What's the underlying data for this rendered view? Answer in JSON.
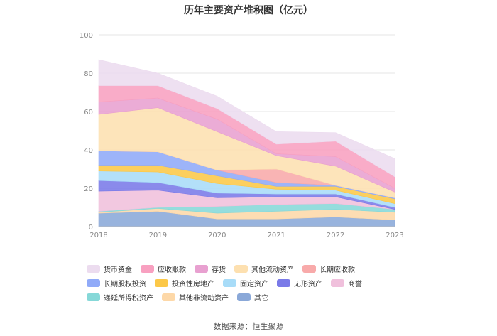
{
  "chart_data": {
    "type": "area",
    "stacked": true,
    "title": "历年主要资产堆积图（亿元）",
    "x": [
      "2018",
      "2019",
      "2020",
      "2021",
      "2022",
      "2023"
    ],
    "ylim": [
      0,
      100
    ],
    "yticks": [
      "0",
      "20",
      "40",
      "60",
      "80",
      "100"
    ],
    "series": [
      {
        "name": "其它",
        "color": "#8aa8d8",
        "values": [
          7.0,
          8.0,
          4.0,
          4.0,
          5.0,
          3.5
        ]
      },
      {
        "name": "其他非流动资产",
        "color": "#fdd8a8",
        "values": [
          0.5,
          1.5,
          3.0,
          4.0,
          4.0,
          4.0
        ]
      },
      {
        "name": "递延所得税资产",
        "color": "#86d8d8",
        "values": [
          0.5,
          0.5,
          3.5,
          3.5,
          3.0,
          1.5
        ]
      },
      {
        "name": "商誉",
        "color": "#f0c0dc",
        "values": [
          10.5,
          9.0,
          4.5,
          4.0,
          3.5,
          0.0
        ]
      },
      {
        "name": "无形资产",
        "color": "#7a7ae8",
        "values": [
          5.5,
          4.0,
          2.5,
          1.5,
          1.5,
          1.0
        ]
      },
      {
        "name": "固定资产",
        "color": "#a8dcf8",
        "values": [
          5.0,
          5.5,
          5.0,
          2.5,
          2.0,
          2.0
        ]
      },
      {
        "name": "投资性房地产",
        "color": "#fcc848",
        "values": [
          3.0,
          3.5,
          4.0,
          1.5,
          2.0,
          2.5
        ]
      },
      {
        "name": "长期股权投资",
        "color": "#90aaf8",
        "values": [
          7.5,
          7.0,
          3.0,
          2.0,
          0.5,
          0.5
        ]
      },
      {
        "name": "长期应收款",
        "color": "#f8aaaa",
        "values": [
          0.0,
          0.0,
          0.0,
          7.0,
          0.0,
          0.0
        ]
      },
      {
        "name": "其他流动资产",
        "color": "#fde0b0",
        "values": [
          19.0,
          23.0,
          20.0,
          7.0,
          10.0,
          3.0
        ]
      },
      {
        "name": "存货",
        "color": "#e8a0d0",
        "values": [
          6.5,
          5.0,
          6.5,
          1.0,
          5.0,
          2.0
        ]
      },
      {
        "name": "应收账款",
        "color": "#f8a0c0",
        "values": [
          8.5,
          6.5,
          5.5,
          5.0,
          8.0,
          6.0
        ]
      },
      {
        "name": "货币资金",
        "color": "#ecdcef",
        "values": [
          13.5,
          6.5,
          6.5,
          6.5,
          4.5,
          9.5
        ]
      }
    ],
    "legend_order": [
      "货币资金",
      "应收账款",
      "存货",
      "其他流动资产",
      "长期应收款",
      "长期股权投资",
      "投资性房地产",
      "固定资产",
      "无形资产",
      "商誉",
      "递延所得税资产",
      "其他非流动资产",
      "其它"
    ]
  },
  "source": "数据来源：恒生聚源"
}
